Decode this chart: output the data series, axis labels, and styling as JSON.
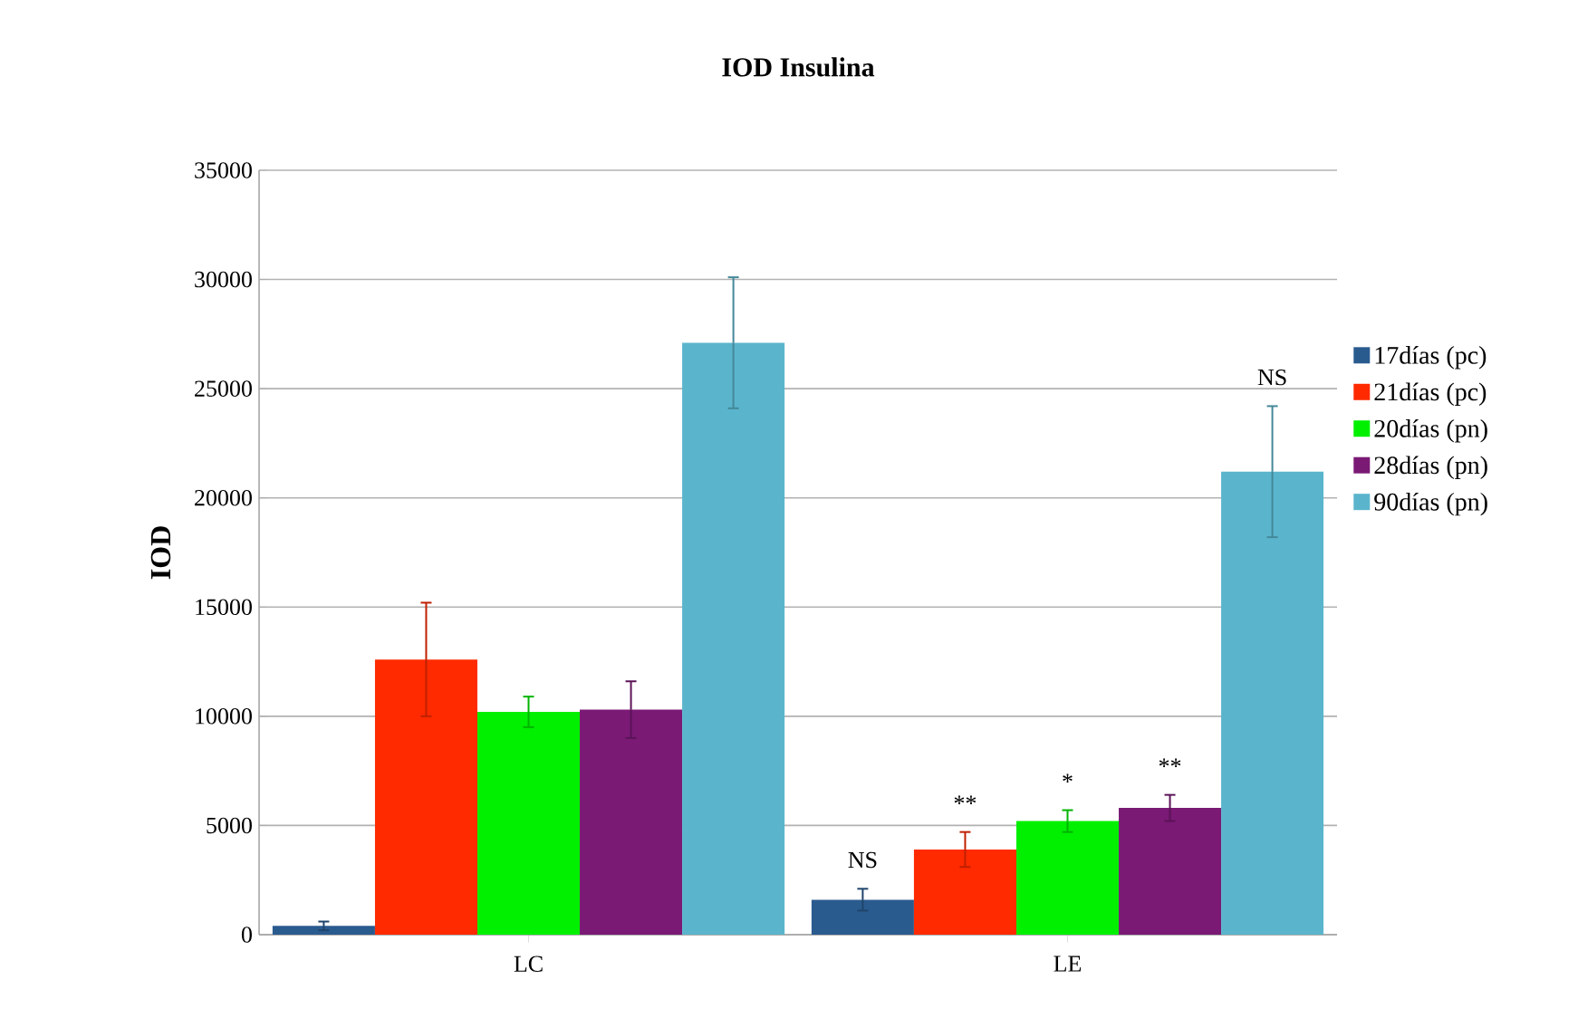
{
  "chart_data": {
    "type": "bar",
    "title": "IOD Insulina",
    "ylabel": "IOD",
    "categories": [
      "LC",
      "LE"
    ],
    "series": [
      {
        "name": "17días (pc)",
        "color": "#2a5b8f",
        "values": [
          400,
          1600
        ],
        "errors": [
          200,
          500
        ]
      },
      {
        "name": "21días (pc)",
        "color": "#ff2a00",
        "values": [
          12600,
          3900
        ],
        "errors": [
          2600,
          800
        ]
      },
      {
        "name": "20días (pn)",
        "color": "#00f000",
        "values": [
          10200,
          5200
        ],
        "errors": [
          700,
          500
        ]
      },
      {
        "name": "28días (pn)",
        "color": "#7a1a75",
        "values": [
          10300,
          5800
        ],
        "errors": [
          1300,
          600
        ]
      },
      {
        "name": "90días (pn)",
        "color": "#5ab5cc",
        "values": [
          27100,
          21200
        ],
        "errors": [
          3000,
          3000
        ]
      }
    ],
    "annotations": [
      "NS",
      "**",
      "*",
      "**",
      "NS"
    ],
    "ylim": [
      0,
      35000
    ],
    "yticks": [
      0,
      5000,
      10000,
      15000,
      20000,
      25000,
      30000,
      35000
    ],
    "grid": "y",
    "legend": "right"
  }
}
